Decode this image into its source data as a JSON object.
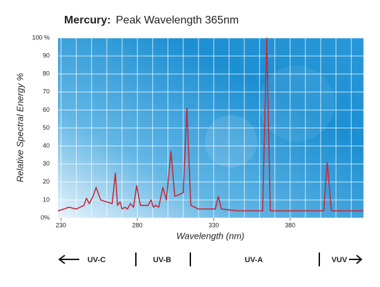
{
  "chart_data": {
    "type": "line",
    "title_bold": "Mercury:",
    "title": "Peak Wavelength 365nm",
    "ylabel": "Relative Spectral Energy %",
    "xlabel": "Wavelength  (nm)",
    "x": [
      228,
      232,
      235,
      240,
      245,
      246.7,
      248.5,
      251,
      253,
      256,
      263.5,
      265.6,
      267,
      268.7,
      270,
      272,
      273.5,
      275.5,
      277.5,
      279.5,
      282,
      287,
      289,
      290.5,
      292,
      294,
      296.7,
      299,
      302,
      304.5,
      310,
      312.4,
      315,
      320,
      331,
      333,
      335,
      345,
      362,
      364.7,
      367,
      380,
      402,
      404.3,
      407,
      428
    ],
    "series": [
      {
        "color": "#c8283c",
        "values": [
          4,
          5,
          6,
          5,
          7,
          11,
          8,
          12,
          17,
          10,
          8,
          25,
          7,
          9,
          5,
          6,
          5,
          8,
          6,
          18,
          7,
          7,
          10,
          6,
          7,
          6,
          17,
          10,
          37,
          12,
          14,
          61,
          7,
          5,
          5,
          12,
          5,
          4,
          4,
          100,
          4,
          4,
          4,
          31,
          4,
          4
        ]
      }
    ],
    "xlim": [
      228,
      428
    ],
    "ylim": [
      0,
      100
    ],
    "xticks": [
      230,
      280,
      330,
      380
    ],
    "x_grid": [
      230,
      240,
      250,
      260,
      270,
      280,
      290,
      300,
      310,
      320,
      330,
      340,
      350,
      360,
      370,
      380,
      390,
      400,
      410,
      420
    ],
    "yticks": [
      {
        "value": 0,
        "label": "0%"
      },
      10,
      20,
      30,
      40,
      50,
      60,
      70,
      80,
      90,
      {
        "value": 100,
        "label": "100 %"
      }
    ],
    "grid": true,
    "bands": [
      "UV-C",
      "UV-B",
      "UV-A",
      "VUV"
    ]
  }
}
